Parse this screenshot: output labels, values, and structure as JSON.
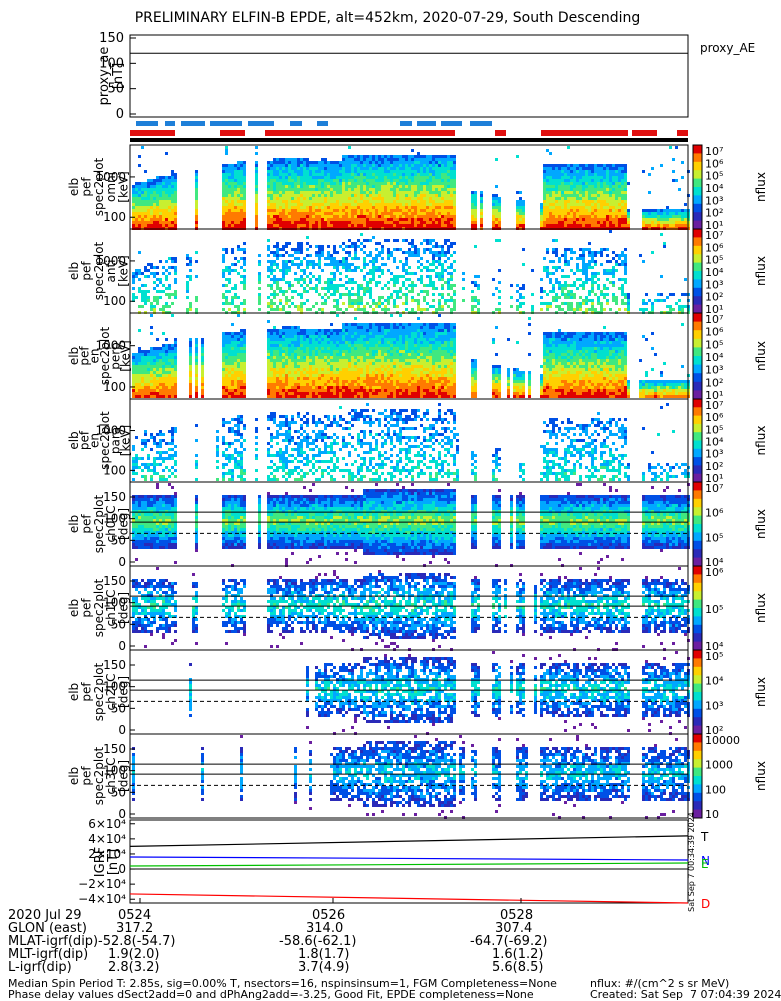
{
  "title": "PRELIMINARY ELFIN-B EPDE, alt=452km, 2020-07-29, South Descending",
  "colorscale": [
    "#6a1fa0",
    "#2a2ab8",
    "#0050e6",
    "#00a8ff",
    "#00e0d0",
    "#40e880",
    "#c8ef30",
    "#ffd000",
    "#ff7a00",
    "#e00000"
  ],
  "chart_data": [
    {
      "type": "line",
      "panel": "proxy_ae",
      "ylabel": "proxy_ae [nT]",
      "yticks": [
        "150",
        "100",
        "50",
        "0"
      ],
      "ylim": [
        0,
        150
      ],
      "series": [
        {
          "name": "proxy_AE",
          "values": [
            120,
            120
          ]
        }
      ],
      "legend": "proxy_AE"
    },
    {
      "type": "heatmap",
      "panel": "elb_pef_spec2plot_omni",
      "ylabel": [
        "elb",
        "pef",
        "spec2plot",
        "omni",
        "[keV]"
      ],
      "yticks": [
        "1000",
        "100"
      ],
      "yscale": "log",
      "zlabel": "nflux",
      "zticks": [
        "10⁷",
        "10⁶",
        "10⁵",
        "10⁴",
        "10³",
        "10²",
        "10¹"
      ]
    },
    {
      "type": "heatmap",
      "panel": "elb_pef_spec2plot_anti",
      "ylabel": [
        "elb",
        "pef",
        "spec2plot",
        "anti",
        "[keV]"
      ],
      "yticks": [
        "1000",
        "100"
      ],
      "yscale": "log",
      "zlabel": "nflux",
      "zticks": [
        "10⁷",
        "10⁶",
        "10⁵",
        "10⁴",
        "10³",
        "10²",
        "10¹"
      ]
    },
    {
      "type": "heatmap",
      "panel": "elb_pef_en_spec2plot_perp",
      "ylabel": [
        "elb",
        "pef",
        "en",
        "spec2plot",
        "perp",
        "[keV]"
      ],
      "yticks": [
        "1000",
        "100"
      ],
      "yscale": "log",
      "zlabel": "nflux",
      "zticks": [
        "10⁷",
        "10⁶",
        "10⁵",
        "10⁴",
        "10³",
        "10²",
        "10¹"
      ]
    },
    {
      "type": "heatmap",
      "panel": "elb_pef_en_spec2plot_para",
      "ylabel": [
        "elb",
        "pef",
        "en",
        "spec2plot",
        "para",
        "[keV]"
      ],
      "yticks": [
        "1000",
        "100"
      ],
      "yscale": "log",
      "zlabel": "nflux",
      "zticks": [
        "10⁷",
        "10⁶",
        "10⁵",
        "10⁴",
        "10³",
        "10²",
        "10¹"
      ]
    },
    {
      "type": "heatmap",
      "panel": "elb_pef_spec2plot_ch0LC",
      "ylabel": [
        "elb",
        "pef",
        "spec2plot",
        "ch0LC",
        "[deg]"
      ],
      "yticks": [
        "150",
        "100",
        "50",
        "0"
      ],
      "ylim": [
        0,
        180
      ],
      "zlabel": "nflux",
      "zticks": [
        "10⁷",
        "10⁶",
        "10⁵",
        "10⁴"
      ]
    },
    {
      "type": "heatmap",
      "panel": "elb_pef_spec2plot_ch1LC",
      "ylabel": [
        "elb",
        "pef",
        "spec2plot",
        "ch1LC",
        "[deg]"
      ],
      "yticks": [
        "150",
        "100",
        "50",
        "0"
      ],
      "ylim": [
        0,
        180
      ],
      "zlabel": "nflux",
      "zticks": [
        "10⁶",
        "10⁵",
        "10⁴"
      ]
    },
    {
      "type": "heatmap",
      "panel": "elb_pef_spec2plot_ch2LC",
      "ylabel": [
        "elb",
        "pef",
        "spec2plot",
        "ch2LC",
        "[deg]"
      ],
      "yticks": [
        "150",
        "100",
        "50",
        "0"
      ],
      "ylim": [
        0,
        180
      ],
      "zlabel": "nflux",
      "zticks": [
        "10⁵",
        "10⁴",
        "10³",
        "10²"
      ]
    },
    {
      "type": "heatmap",
      "panel": "elb_pef_spec2plot_ch3LC",
      "ylabel": [
        "elb",
        "pef",
        "spec2plot",
        "ch3LC",
        "[deg]"
      ],
      "yticks": [
        "150",
        "100",
        "50",
        "0"
      ],
      "ylim": [
        0,
        180
      ],
      "zlabel": "nflux",
      "zticks": [
        "10000",
        "1000",
        "100",
        "10"
      ]
    },
    {
      "type": "line",
      "panel": "IGRF",
      "ylabel": "IGRF [nT]",
      "yticks": [
        "6×10⁴",
        "4×10⁴",
        "2×10⁴",
        "0",
        "−2×10⁴",
        "−4×10⁴"
      ],
      "ylim": [
        -45000,
        65000
      ],
      "series": [
        {
          "name": "T",
          "color": "#000000",
          "values": [
            30000,
            44000
          ]
        },
        {
          "name": "N",
          "color": "#0000ff",
          "values": [
            16000,
            12000
          ]
        },
        {
          "name": "E",
          "color": "#00c000",
          "values": [
            4000,
            8000
          ]
        },
        {
          "name": "D",
          "color": "#ff0000",
          "values": [
            -33000,
            -45000
          ]
        }
      ]
    }
  ],
  "stamp": "Sat Sep 7 00:34:39 2024",
  "footer": {
    "date": "2020 Jul 29",
    "ticks": [
      "0524",
      "0526",
      "0528"
    ],
    "rows": [
      {
        "label": "GLON (east)",
        "values": [
          "317.2",
          "314.0",
          "307.4"
        ]
      },
      {
        "label": "MLAT-igrf(dip)",
        "values": [
          "-52.8(-54.7)",
          "-58.6(-62.1)",
          "-64.7(-69.2)"
        ]
      },
      {
        "label": "MLT-igrf(dip)",
        "values": [
          "1.9(2.0)",
          "1.8(1.7)",
          "1.6(1.2)"
        ]
      },
      {
        "label": "L-igrf(dip)",
        "values": [
          "2.8(3.2)",
          "3.7(4.9)",
          "5.6(8.5)"
        ]
      }
    ],
    "note1": "Median Spin Period T: 2.85s, sig=0.00% T, nsectors=16, nspinsinsum=1, FGM Completeness=None",
    "note2": "Phase delay values dSect2add=0 and dPhAng2add=-3.25, Good Fit, EPDE completeness=None",
    "units": "nflux: #/(cm^2 s sr MeV)",
    "created": "Created: Sat Sep  7 07:04:39 2024"
  }
}
